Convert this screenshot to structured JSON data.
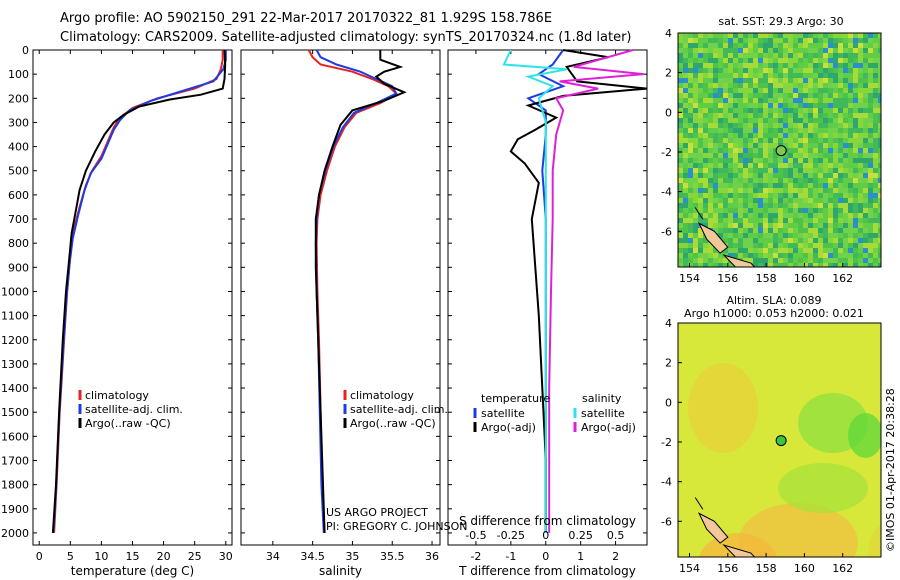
{
  "header": {
    "line1": "Argo profile: AO 5902150_291 22-Mar-2017 20170322_81 1.929S 158.786E",
    "line2": "Climatology: CARS2009. Satellite-adjusted climatology: synTS_20170324.nc (1.8d later)"
  },
  "colors": {
    "climatology": "#e8231f",
    "satellite": "#1f3be0",
    "argo": "#000000",
    "sat_sal": "#2fe4e8",
    "argo_sal": "#e020d8"
  },
  "depth_axis": {
    "ylim": [
      0,
      2050
    ],
    "ticks": [
      0,
      100,
      200,
      300,
      400,
      500,
      600,
      700,
      800,
      900,
      1000,
      1100,
      1200,
      1300,
      1400,
      1500,
      1600,
      1700,
      1800,
      1900,
      2000
    ],
    "tick_labels": [
      "0",
      "100",
      "200",
      "300",
      "400",
      "500",
      "600",
      "700",
      "800",
      "900",
      "1000",
      "1100",
      "1200",
      "1300",
      "1400",
      "1500",
      "1600",
      "1700",
      "1800",
      "1900",
      "2000"
    ]
  },
  "chart_data": [
    {
      "type": "line",
      "name": "temperature",
      "xlabel": "temperature (deg C)",
      "xlim": [
        -1,
        31
      ],
      "xticks": [
        0,
        5,
        10,
        15,
        20,
        25,
        30
      ],
      "xtick_labels": [
        "0",
        "5",
        "10",
        "15",
        "20",
        "25",
        "30"
      ],
      "legend": [
        "climatology",
        "satellite-adj. clim.",
        "Argo(..raw -QC)"
      ],
      "series": [
        {
          "name": "climatology",
          "points": [
            [
              29.5,
              0
            ],
            [
              29.5,
              40
            ],
            [
              29.2,
              80
            ],
            [
              28.5,
              120
            ],
            [
              25,
              160
            ],
            [
              19,
              200
            ],
            [
              15,
              240
            ],
            [
              13,
              280
            ],
            [
              12,
              320
            ],
            [
              11,
              380
            ],
            [
              10,
              440
            ],
            [
              8.5,
              500
            ],
            [
              7.5,
              560
            ],
            [
              6.5,
              650
            ],
            [
              5.5,
              750
            ],
            [
              5,
              850
            ],
            [
              4.5,
              1000
            ],
            [
              4,
              1200
            ],
            [
              3.3,
              1500
            ],
            [
              2.8,
              1800
            ],
            [
              2.4,
              2000
            ]
          ]
        },
        {
          "name": "satellite-adj. clim.",
          "points": [
            [
              30,
              0
            ],
            [
              30,
              40
            ],
            [
              29.6,
              80
            ],
            [
              28,
              130
            ],
            [
              23,
              170
            ],
            [
              18,
              210
            ],
            [
              14.5,
              250
            ],
            [
              13,
              290
            ],
            [
              12,
              330
            ],
            [
              11,
              390
            ],
            [
              10,
              450
            ],
            [
              8.3,
              510
            ],
            [
              7.3,
              580
            ],
            [
              6.3,
              680
            ],
            [
              5.4,
              780
            ],
            [
              4.9,
              880
            ],
            [
              4.4,
              1020
            ],
            [
              3.9,
              1220
            ],
            [
              3.2,
              1520
            ],
            [
              2.7,
              1820
            ],
            [
              2.3,
              2000
            ]
          ]
        },
        {
          "name": "Argo(..raw -QC)",
          "points": [
            [
              29.8,
              0
            ],
            [
              29.9,
              60
            ],
            [
              29.8,
              120
            ],
            [
              29.5,
              160
            ],
            [
              26,
              185
            ],
            [
              21,
              205
            ],
            [
              16,
              235
            ],
            [
              13.5,
              270
            ],
            [
              12,
              300
            ],
            [
              10.5,
              350
            ],
            [
              9,
              420
            ],
            [
              7.5,
              500
            ],
            [
              6.5,
              580
            ],
            [
              6,
              650
            ],
            [
              5.2,
              760
            ],
            [
              4.8,
              870
            ],
            [
              4.3,
              1000
            ],
            [
              3.8,
              1200
            ],
            [
              3.2,
              1500
            ],
            [
              2.7,
              1800
            ],
            [
              2.2,
              2000
            ]
          ]
        }
      ]
    },
    {
      "type": "line",
      "name": "salinity",
      "xlabel": "salinity",
      "xlim": [
        33.6,
        36.1
      ],
      "xticks": [
        34,
        34.5,
        35,
        35.5,
        36
      ],
      "xtick_labels": [
        "34",
        "34.5",
        "35",
        "35.5",
        "36"
      ],
      "legend": [
        "climatology",
        "satellite-adj. clim.",
        "Argo(..raw -QC)"
      ],
      "series": [
        {
          "name": "climatology",
          "points": [
            [
              34.45,
              0
            ],
            [
              34.5,
              30
            ],
            [
              34.6,
              60
            ],
            [
              35,
              90
            ],
            [
              35.25,
              120
            ],
            [
              35.45,
              150
            ],
            [
              35.55,
              180
            ],
            [
              35.35,
              220
            ],
            [
              35.05,
              260
            ],
            [
              34.9,
              320
            ],
            [
              34.78,
              400
            ],
            [
              34.68,
              500
            ],
            [
              34.6,
              600
            ],
            [
              34.56,
              700
            ],
            [
              34.55,
              800
            ],
            [
              34.56,
              1000
            ],
            [
              34.58,
              1200
            ],
            [
              34.6,
              1500
            ],
            [
              34.62,
              1800
            ],
            [
              34.65,
              2000
            ]
          ]
        },
        {
          "name": "satellite-adj. clim.",
          "points": [
            [
              34.55,
              0
            ],
            [
              34.6,
              30
            ],
            [
              34.8,
              60
            ],
            [
              35.1,
              90
            ],
            [
              35.3,
              120
            ],
            [
              35.5,
              150
            ],
            [
              35.55,
              180
            ],
            [
              35.3,
              220
            ],
            [
              35.02,
              260
            ],
            [
              34.88,
              320
            ],
            [
              34.76,
              400
            ],
            [
              34.66,
              500
            ],
            [
              34.58,
              600
            ],
            [
              34.55,
              700
            ],
            [
              34.54,
              800
            ],
            [
              34.55,
              1000
            ],
            [
              34.57,
              1200
            ],
            [
              34.59,
              1500
            ],
            [
              34.61,
              1800
            ],
            [
              34.64,
              2000
            ]
          ]
        },
        {
          "name": "Argo(..raw -QC)",
          "points": [
            [
              35.35,
              0
            ],
            [
              35.35,
              40
            ],
            [
              35.6,
              70
            ],
            [
              35.4,
              90
            ],
            [
              35.3,
              110
            ],
            [
              35.4,
              140
            ],
            [
              35.65,
              175
            ],
            [
              35.4,
              210
            ],
            [
              35,
              250
            ],
            [
              34.85,
              310
            ],
            [
              34.75,
              400
            ],
            [
              34.65,
              500
            ],
            [
              34.58,
              600
            ],
            [
              34.54,
              700
            ],
            [
              34.54,
              900
            ],
            [
              34.56,
              1100
            ],
            [
              34.59,
              1400
            ],
            [
              34.62,
              1700
            ],
            [
              34.65,
              2000
            ]
          ]
        }
      ]
    },
    {
      "type": "line",
      "name": "difference",
      "xlabel": "T difference from climatology",
      "xlabel_top": "S difference from climatology",
      "xlim": [
        -2.8,
        2.9
      ],
      "xticks": [
        -2,
        -1,
        0,
        1,
        2
      ],
      "xtick_labels": [
        "-2",
        "-1",
        "0",
        "1",
        "2"
      ],
      "s_ticks": [
        -0.5,
        -0.25,
        0,
        0.25,
        0.5
      ],
      "s_tick_labels": [
        "-0.5",
        "-0.25",
        "0",
        "0.25",
        "0.5"
      ],
      "legend_temperature": {
        "title": "temperature",
        "items": [
          "satellite",
          "Argo(-adj)"
        ]
      },
      "legend_salinity": {
        "title": "salinity",
        "items": [
          "satellite",
          "Argo(-adj)"
        ]
      },
      "series": [
        {
          "name": "temperature satellite",
          "points": [
            [
              0.5,
              0
            ],
            [
              0.2,
              60
            ],
            [
              -0.2,
              100
            ],
            [
              0.5,
              150
            ],
            [
              -0.5,
              200
            ],
            [
              0,
              250
            ],
            [
              0,
              350
            ],
            [
              -0.1,
              500
            ],
            [
              0,
              700
            ],
            [
              0,
              1000
            ],
            [
              0,
              1500
            ],
            [
              0,
              2000
            ]
          ]
        },
        {
          "name": "temperature Argo(-adj)",
          "points": [
            [
              0.5,
              0
            ],
            [
              1.8,
              30
            ],
            [
              0.6,
              70
            ],
            [
              0.9,
              130
            ],
            [
              2.9,
              160
            ],
            [
              0.5,
              190
            ],
            [
              -0.5,
              230
            ],
            [
              0.3,
              280
            ],
            [
              -0.3,
              330
            ],
            [
              -0.8,
              370
            ],
            [
              -1,
              420
            ],
            [
              -0.6,
              470
            ],
            [
              -0.2,
              550
            ],
            [
              -0.4,
              700
            ],
            [
              -0.3,
              900
            ],
            [
              -0.2,
              1100
            ],
            [
              -0.1,
              1400
            ],
            [
              0,
              1700
            ],
            [
              0,
              2000
            ]
          ]
        },
        {
          "name": "salinity satellite",
          "points": [
            [
              -1,
              0
            ],
            [
              -1.2,
              60
            ],
            [
              0.6,
              80
            ],
            [
              -0.5,
              110
            ],
            [
              0.2,
              150
            ],
            [
              -0.2,
              200
            ],
            [
              0,
              300
            ],
            [
              0,
              600
            ],
            [
              0,
              1000
            ],
            [
              0,
              1500
            ],
            [
              0,
              2000
            ]
          ]
        },
        {
          "name": "salinity Argo(-adj)",
          "points": [
            [
              2.5,
              0
            ],
            [
              0.8,
              70
            ],
            [
              2.8,
              100
            ],
            [
              0.4,
              130
            ],
            [
              1.5,
              160
            ],
            [
              0.3,
              200
            ],
            [
              0.5,
              250
            ],
            [
              0.3,
              350
            ],
            [
              0.2,
              500
            ],
            [
              0.2,
              700
            ],
            [
              0.15,
              1000
            ],
            [
              0.1,
              1400
            ],
            [
              0.1,
              1800
            ],
            [
              0.1,
              2000
            ]
          ]
        }
      ]
    }
  ],
  "maps": {
    "sst": {
      "title": "sat. SST: 29.3 Argo: 30",
      "x_ticks": [
        "154",
        "156",
        "158",
        "160",
        "162"
      ],
      "y_ticks": [
        "4",
        "2",
        "0",
        "-2",
        "-4",
        "-6"
      ],
      "lon": 158.786,
      "lat": -1.929
    },
    "sla": {
      "title1": "Altim. SLA: 0.089",
      "title2": "Argo h1000: 0.053 h2000: 0.021",
      "x_ticks": [
        "154",
        "156",
        "158",
        "160",
        "162"
      ],
      "y_ticks": [
        "4",
        "2",
        "0",
        "-2",
        "-4",
        "-6"
      ],
      "lon": 158.786,
      "lat": -1.929
    }
  },
  "credits": {
    "line1": "US ARGO PROJECT",
    "line2": "PI: GREGORY C. JOHNSON",
    "imos": "©IMOS 01-Apr-2017 20:38:28"
  }
}
